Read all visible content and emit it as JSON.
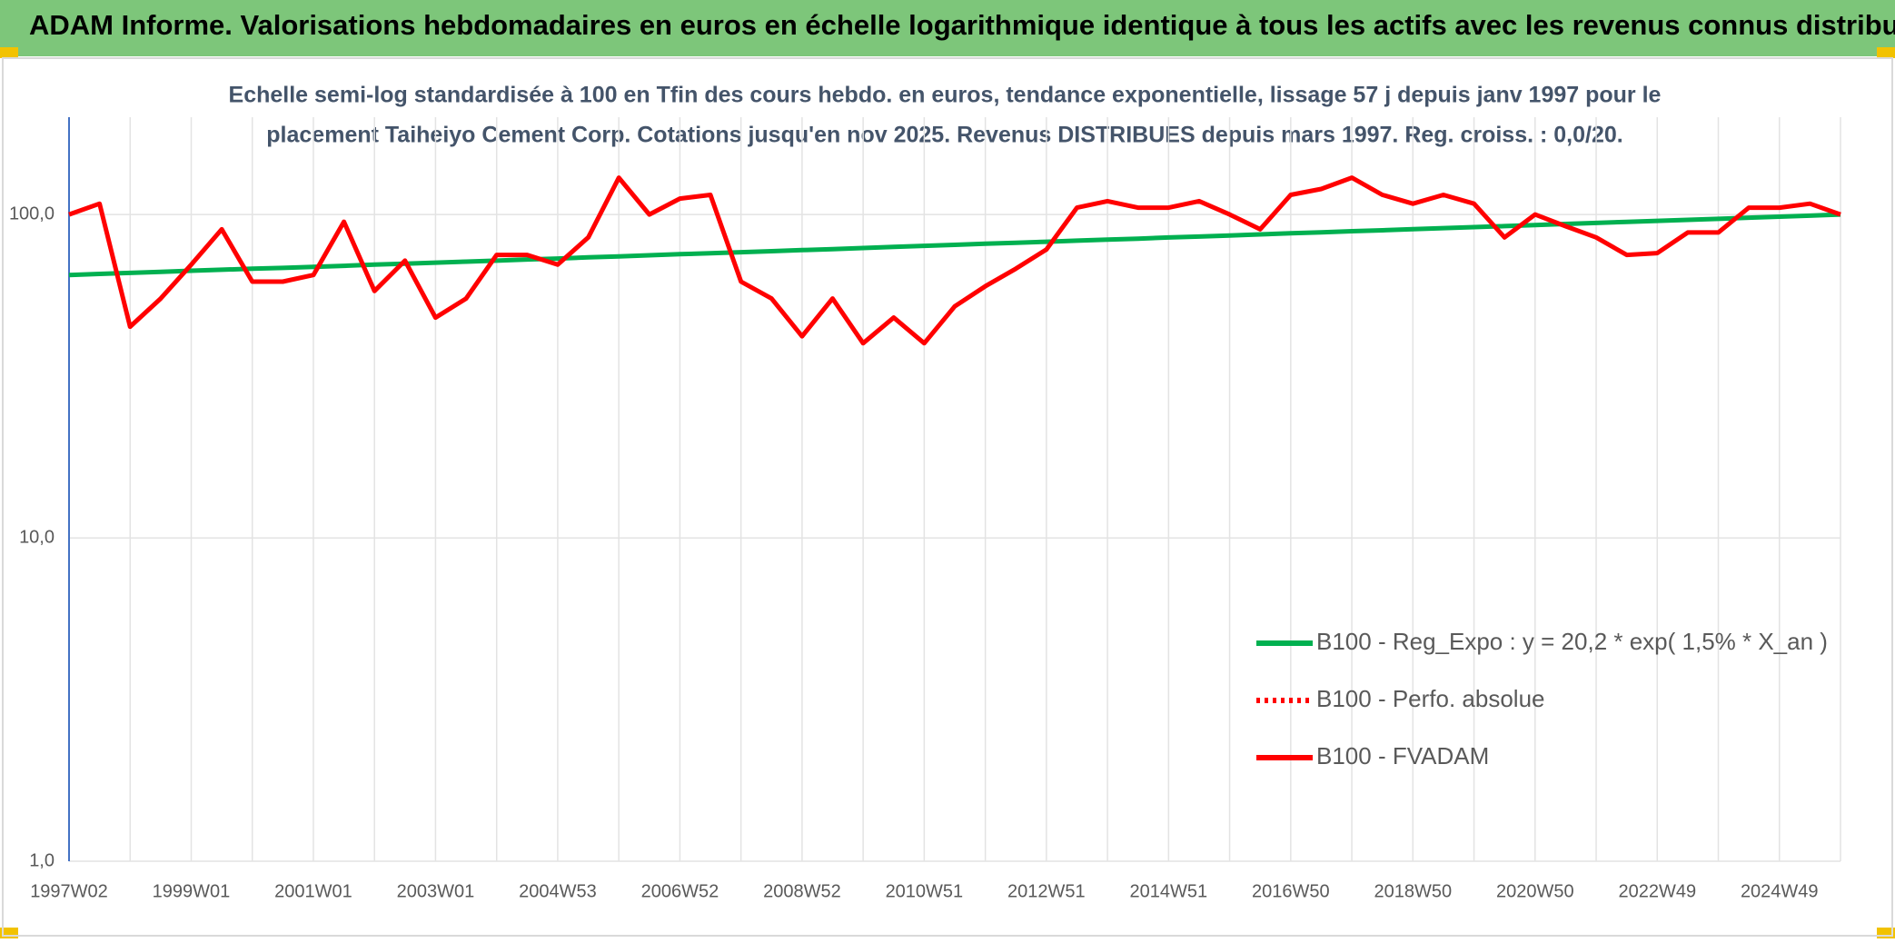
{
  "chart_data": {
    "type": "line",
    "title": "ADAM Informe. Valorisations hebdomadaires en euros en échelle logarithmique identique à tous les actifs avec les revenus connus distribués",
    "subtitle": [
      "Echelle semi-log standardisée à 100 en Tfin des cours hebdo. en euros, tendance exponentielle, lissage 57 j depuis janv 1997 pour le",
      "placement Taiheiyo Cement Corp. Cotations jusqu'en nov 2025. Revenus DISTRIBUES depuis mars 1997. Reg. croiss. : 0,0/20."
    ],
    "categories": [
      "1997W02",
      null,
      null,
      null,
      "1999W01",
      null,
      null,
      null,
      "2001W01",
      null,
      null,
      null,
      "2003W01",
      null,
      null,
      null,
      "2004W53",
      null,
      null,
      null,
      "2006W52",
      null,
      null,
      null,
      "2008W52",
      null,
      null,
      null,
      "2010W51",
      null,
      null,
      null,
      "2012W51",
      null,
      null,
      null,
      "2014W51",
      null,
      null,
      null,
      "2016W50",
      null,
      null,
      null,
      "2018W50",
      null,
      null,
      null,
      "2020W50",
      null,
      null,
      null,
      "2022W49",
      null,
      null,
      null,
      "2024W49",
      null,
      null
    ],
    "series": [
      {
        "name": "B100 - Reg_Expo : y = 20,2 * exp( 1,5% *  X_an )",
        "color": "#00b050",
        "style": "solid",
        "values": [
          65.0,
          65.5,
          66.0,
          66.5,
          67.0,
          67.5,
          68.0,
          68.4,
          68.9,
          69.4,
          70.0,
          70.5,
          71.0,
          71.5,
          72.0,
          72.6,
          73.1,
          73.7,
          74.2,
          74.8,
          75.4,
          75.9,
          76.5,
          77.0,
          77.6,
          78.2,
          78.8,
          79.4,
          80.0,
          80.6,
          81.2,
          81.8,
          82.4,
          83.0,
          83.6,
          84.2,
          84.9,
          85.5,
          86.1,
          86.8,
          87.5,
          88.1,
          88.8,
          89.4,
          90.1,
          90.8,
          91.4,
          92.1,
          92.8,
          93.5,
          94.2,
          94.9,
          95.6,
          96.3,
          97.0,
          97.8,
          98.5,
          99.2,
          100.0
        ]
      },
      {
        "name": "B100 - Perfo. absolue",
        "color": "#ff0000",
        "style": "dotted",
        "values": [
          null,
          null,
          null,
          null,
          null,
          null,
          null,
          null,
          null,
          null,
          null,
          null,
          null,
          null,
          null,
          null,
          null,
          null,
          null,
          null,
          null,
          null,
          null,
          null,
          null,
          null,
          null,
          null,
          null,
          null,
          null,
          null,
          null,
          null,
          null,
          null,
          null,
          null,
          null,
          null,
          null,
          null,
          null,
          null,
          null,
          null,
          null,
          null,
          null,
          null,
          null,
          null,
          null,
          null,
          null,
          null,
          null,
          null,
          null
        ]
      },
      {
        "name": "B100 - FVADAM",
        "color": "#ff0000",
        "style": "solid",
        "values": [
          100,
          108,
          45,
          55,
          70,
          90,
          62,
          62,
          65,
          95,
          58,
          72,
          48,
          55,
          75,
          75,
          70,
          85,
          130,
          100,
          112,
          115,
          62,
          55,
          42,
          55,
          40,
          48,
          40,
          52,
          60,
          68,
          78,
          105,
          110,
          105,
          105,
          110,
          100,
          90,
          115,
          120,
          130,
          115,
          108,
          115,
          108,
          85,
          100,
          92,
          85,
          75,
          76,
          88,
          88,
          105,
          105,
          108,
          100
        ]
      }
    ],
    "ylim": [
      1,
      200
    ],
    "yticks": [
      {
        "value": 1,
        "label": "1,0"
      },
      {
        "value": 10,
        "label": "10,0"
      },
      {
        "value": 100,
        "label": "100,0"
      }
    ],
    "log_scale": true,
    "grid": true,
    "legend": "bottom-right"
  }
}
